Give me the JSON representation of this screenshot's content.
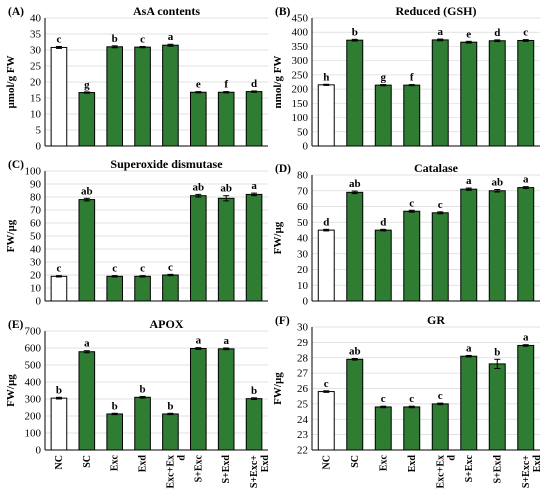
{
  "colors": {
    "control_fill": "#ffffff",
    "treatment_fill": "#2e7d32",
    "bar_stroke": "#000000",
    "axis": "#000000",
    "grid": "#d9d9d9"
  },
  "chart_data": [
    {
      "type": "bar",
      "panel_label": "(A)",
      "title": "AsA contents",
      "ylabel": "µmol/g FW",
      "ylim": [
        0,
        40
      ],
      "yticks": [
        0,
        5,
        10,
        15,
        20,
        25,
        30,
        35,
        40
      ],
      "grid": true,
      "categories": [
        "NC",
        "SC",
        "Exc",
        "Exd",
        "Exc+Exd",
        "S+Exc",
        "S+Exd",
        "S+Exc+Exd"
      ],
      "values": [
        30.8,
        16.7,
        31.0,
        30.9,
        31.5,
        16.8,
        16.8,
        17.0
      ],
      "errors": [
        0.3,
        0.2,
        0.3,
        0.2,
        0.3,
        0.2,
        0.2,
        0.2
      ],
      "letters": [
        "c",
        "g",
        "b",
        "c",
        "a",
        "e",
        "f",
        "d"
      ]
    },
    {
      "type": "bar",
      "panel_label": "(B)",
      "title": "Reduced (GSH)",
      "ylabel": "nmol/g FW",
      "ylim": [
        0,
        450
      ],
      "yticks": [
        0,
        50,
        100,
        150,
        200,
        250,
        300,
        350,
        400,
        450
      ],
      "grid": true,
      "categories": [
        "NC",
        "SC",
        "Exc",
        "Exd",
        "Exc+Exd",
        "S+Exc",
        "S+Exd",
        "S+Exc+Exd"
      ],
      "values": [
        215,
        372,
        214,
        214,
        373,
        365,
        370,
        371
      ],
      "errors": [
        2,
        3,
        2,
        2,
        3,
        3,
        3,
        3
      ],
      "letters": [
        "h",
        "b",
        "g",
        "f",
        "a",
        "e",
        "d",
        "c"
      ]
    },
    {
      "type": "bar",
      "panel_label": "(C)",
      "title": "Superoxide dismutase",
      "ylabel": "FW/µg",
      "ylim": [
        0,
        100
      ],
      "yticks": [
        0,
        10,
        20,
        30,
        40,
        50,
        60,
        70,
        80,
        90,
        100
      ],
      "grid": true,
      "categories": [
        "NC",
        "SC",
        "Exc",
        "Exd",
        "Exc+Exd",
        "S+Exc",
        "S+Exd",
        "S+Exc+Exd"
      ],
      "values": [
        19,
        78,
        19,
        19,
        20,
        81,
        79,
        82
      ],
      "errors": [
        0.5,
        1,
        0.5,
        0.5,
        0.5,
        1,
        2,
        1
      ],
      "letters": [
        "c",
        "ab",
        "c",
        "c",
        "c",
        "ab",
        "ab",
        "a"
      ]
    },
    {
      "type": "bar",
      "panel_label": "(D)",
      "title": "Catalase",
      "ylabel": "FW/µg",
      "ylim": [
        0,
        80
      ],
      "yticks": [
        0,
        10,
        20,
        30,
        40,
        50,
        60,
        70,
        80
      ],
      "grid": true,
      "categories": [
        "NC",
        "SC",
        "Exc",
        "Exd",
        "Exc+Exd",
        "S+Exc",
        "S+Exd",
        "S+Exc+Exd"
      ],
      "values": [
        45,
        69,
        45,
        57,
        56,
        71,
        70,
        72
      ],
      "errors": [
        0.5,
        0.8,
        0.5,
        0.6,
        0.6,
        0.7,
        0.8,
        0.6
      ],
      "letters": [
        "d",
        "ab",
        "d",
        "c",
        "c",
        "a",
        "ab",
        "a"
      ]
    },
    {
      "type": "bar",
      "panel_label": "(E)",
      "title": "APOX",
      "ylabel": "FW/µg",
      "ylim": [
        0,
        700
      ],
      "yticks": [
        0,
        100,
        200,
        300,
        400,
        500,
        600,
        700
      ],
      "grid": true,
      "categories": [
        "NC",
        "SC",
        "Exc",
        "Exd",
        "Exc+Exd",
        "S+Exc",
        "S+Exd",
        "S+Exc+Exd"
      ],
      "values": [
        305,
        578,
        212,
        310,
        212,
        597,
        595,
        302
      ],
      "errors": [
        5,
        6,
        4,
        5,
        4,
        5,
        5,
        5
      ],
      "letters": [
        "b",
        "a",
        "b",
        "b",
        "b",
        "a",
        "a",
        "b"
      ],
      "category_labels": [
        "NC",
        "SC",
        "Exc",
        "Exd",
        "Exc+Ex d",
        "S+Exc",
        "S+Exd",
        "S+Exc+ Exd"
      ]
    },
    {
      "type": "bar",
      "panel_label": "(F)",
      "title": "GR",
      "ylabel": "FW/µg",
      "ylim": [
        22,
        30
      ],
      "yticks": [
        22,
        23,
        24,
        25,
        26,
        27,
        28,
        29,
        30
      ],
      "grid": true,
      "categories": [
        "NC",
        "SC",
        "Exc",
        "Exd",
        "Exc+Exd",
        "S+Exc",
        "S+Exd",
        "S+Exc+Exd"
      ],
      "values": [
        25.8,
        27.9,
        24.8,
        24.8,
        25.0,
        28.1,
        27.6,
        28.8
      ],
      "errors": [
        0.05,
        0.05,
        0.05,
        0.05,
        0.05,
        0.05,
        0.3,
        0.05
      ],
      "letters": [
        "c",
        "ab",
        "c",
        "c",
        "c",
        "a",
        "b",
        "a"
      ],
      "category_labels": [
        "NC",
        "SC",
        "Exc",
        "Exd",
        "Exc+Ex d",
        "S+Exc",
        "S+Exd",
        "S+Exc+ Exd"
      ]
    }
  ]
}
